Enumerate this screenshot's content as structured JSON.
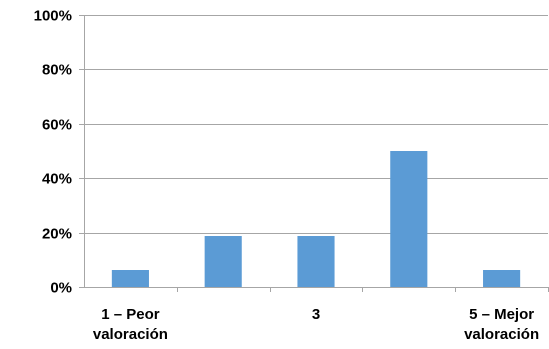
{
  "chart_data": {
    "type": "bar",
    "categories": [
      [
        "1 – Peor",
        "valoración"
      ],
      [
        "",
        ""
      ],
      [
        "3",
        ""
      ],
      [
        "",
        ""
      ],
      [
        "5 – Mejor",
        "valoración"
      ]
    ],
    "values": [
      6.25,
      18.75,
      18.75,
      50,
      6.25
    ],
    "y_ticks": [
      0,
      20,
      40,
      60,
      80,
      100
    ],
    "y_tick_labels": [
      "0%",
      "20%",
      "40%",
      "60%",
      "80%",
      "100%"
    ],
    "ylim": [
      0,
      100
    ],
    "title": "",
    "xlabel": "",
    "ylabel": "",
    "grid": true,
    "legend": "none",
    "colors": {
      "bar": "#5b9bd5",
      "grid": "#a6a6a6",
      "axis": "#a6a6a6"
    }
  }
}
